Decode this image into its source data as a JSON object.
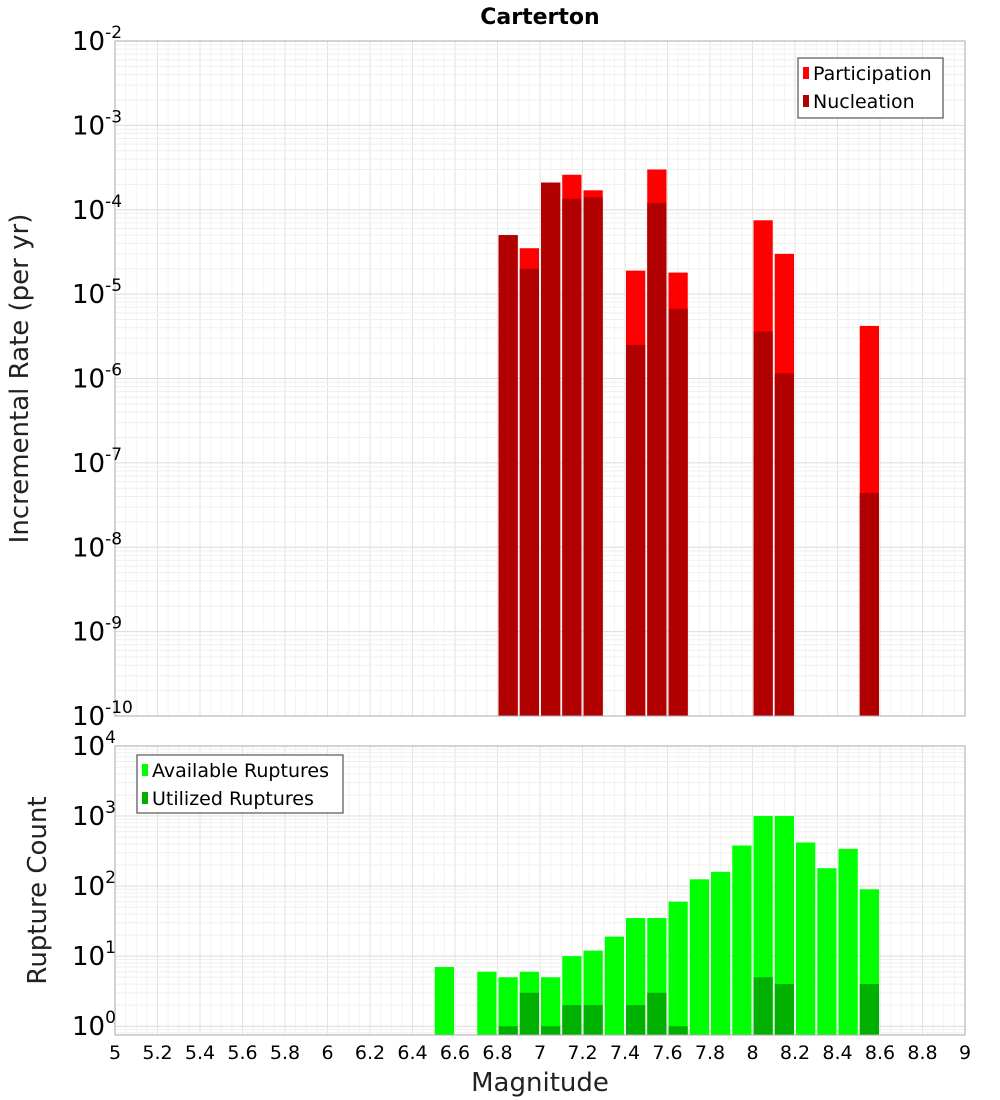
{
  "chart_data": [
    {
      "type": "bar",
      "title": "Carterton",
      "xlabel": "",
      "ylabel": "Incremental Rate (per yr)",
      "x_range": [
        5,
        9
      ],
      "ylim": [
        1e-10,
        0.01
      ],
      "y_scale": "log",
      "grid": true,
      "legend_position": "top-right",
      "y_ticks": [
        {
          "base": "10",
          "exp": "-10"
        },
        {
          "base": "10",
          "exp": "-9"
        },
        {
          "base": "10",
          "exp": "-8"
        },
        {
          "base": "10",
          "exp": "-7"
        },
        {
          "base": "10",
          "exp": "-6"
        },
        {
          "base": "10",
          "exp": "-5"
        },
        {
          "base": "10",
          "exp": "-4"
        },
        {
          "base": "10",
          "exp": "-3"
        },
        {
          "base": "10",
          "exp": "-2"
        }
      ],
      "series": [
        {
          "name": "Participation",
          "color": "#ff0000",
          "x": [
            6.85,
            6.95,
            7.05,
            7.15,
            7.25,
            7.45,
            7.55,
            7.65,
            8.05,
            8.15,
            8.55
          ],
          "values": [
            5e-05,
            3.5e-05,
            0.00021,
            0.00026,
            0.00017,
            1.9e-05,
            0.0003,
            1.8e-05,
            7.5e-05,
            3e-05,
            4.2e-06
          ]
        },
        {
          "name": "Nucleation",
          "color": "#b00000",
          "x": [
            6.85,
            6.95,
            7.05,
            7.15,
            7.25,
            7.45,
            7.55,
            7.65,
            8.05,
            8.15,
            8.55
          ],
          "values": [
            5e-05,
            2e-05,
            0.00021,
            0.000135,
            0.00014,
            2.5e-06,
            0.00012,
            6.7e-06,
            3.6e-06,
            1.15e-06,
            4.4e-08
          ]
        }
      ]
    },
    {
      "type": "bar",
      "title": "",
      "xlabel": "Magnitude",
      "ylabel": "Rupture Count",
      "x_range": [
        5,
        9
      ],
      "ylim": [
        0.75,
        10000
      ],
      "y_scale": "log",
      "grid": true,
      "legend_position": "top-left",
      "y_ticks": [
        {
          "base": "10",
          "exp": "0"
        },
        {
          "base": "10",
          "exp": "1"
        },
        {
          "base": "10",
          "exp": "2"
        },
        {
          "base": "10",
          "exp": "3"
        },
        {
          "base": "10",
          "exp": "4"
        }
      ],
      "x_tick_labels": [
        "5",
        "5.2",
        "5.4",
        "5.6",
        "5.8",
        "6",
        "6.2",
        "6.4",
        "6.6",
        "6.8",
        "7",
        "7.2",
        "7.4",
        "7.6",
        "7.8",
        "8",
        "8.2",
        "8.4",
        "8.6",
        "8.8",
        "9"
      ],
      "series": [
        {
          "name": "Available Ruptures",
          "color": "#00ff00",
          "x": [
            6.55,
            6.75,
            6.85,
            6.95,
            7.05,
            7.15,
            7.25,
            7.35,
            7.45,
            7.55,
            7.65,
            7.75,
            7.85,
            7.95,
            8.05,
            8.15,
            8.25,
            8.35,
            8.45,
            8.55
          ],
          "values": [
            7,
            6,
            5,
            6,
            5,
            10,
            12,
            19,
            35,
            35,
            60,
            125,
            160,
            380,
            1000,
            1000,
            420,
            180,
            340,
            90
          ]
        },
        {
          "name": "Utilized Ruptures",
          "color": "#00b000",
          "x": [
            6.85,
            6.95,
            7.05,
            7.15,
            7.25,
            7.45,
            7.55,
            7.65,
            8.05,
            8.15,
            8.55
          ],
          "values": [
            1,
            3,
            1,
            2,
            2,
            2,
            3,
            1,
            5,
            4,
            4
          ]
        }
      ]
    }
  ]
}
